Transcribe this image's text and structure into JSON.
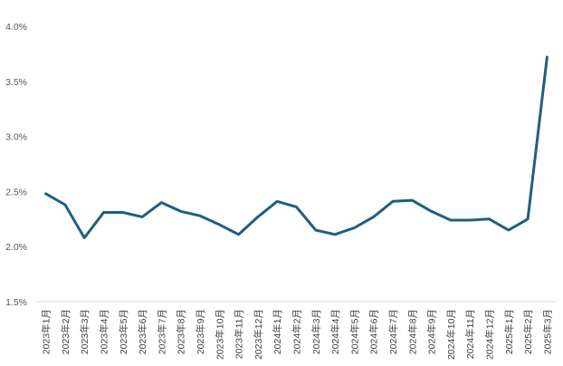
{
  "chart_data": {
    "type": "line",
    "title": "",
    "xlabel": "",
    "ylabel": "",
    "ylim": [
      0.015,
      0.04
    ],
    "yticks": [
      "1.5%",
      "2.0%",
      "2.5%",
      "3.0%",
      "3.5%",
      "4.0%"
    ],
    "grid": false,
    "line_color": "#1f5f7f",
    "categories": [
      "2023年1月",
      "2023年2月",
      "2023年3月",
      "2023年4月",
      "2023年5月",
      "2023年6月",
      "2023年7月",
      "2023年8月",
      "2023年9月",
      "2023年10月",
      "2023年11月",
      "2023年12月",
      "2024年1月",
      "2024年2月",
      "2024年3月",
      "2024年4月",
      "2024年5月",
      "2024年6月",
      "2024年7月",
      "2024年8月",
      "2024年9月",
      "2024年10月",
      "2024年11月",
      "2024年12月",
      "2025年1月",
      "2025年2月",
      "2025年3月"
    ],
    "series": [
      {
        "values": [
          0.0248,
          0.0238,
          0.0208,
          0.0231,
          0.0231,
          0.0227,
          0.024,
          0.0232,
          0.0228,
          0.022,
          0.0211,
          0.0227,
          0.0241,
          0.0236,
          0.0215,
          0.0211,
          0.0217,
          0.0227,
          0.0241,
          0.0242,
          0.0232,
          0.0224,
          0.0224,
          0.0225,
          0.0215,
          0.0225,
          0.0372
        ]
      }
    ]
  }
}
